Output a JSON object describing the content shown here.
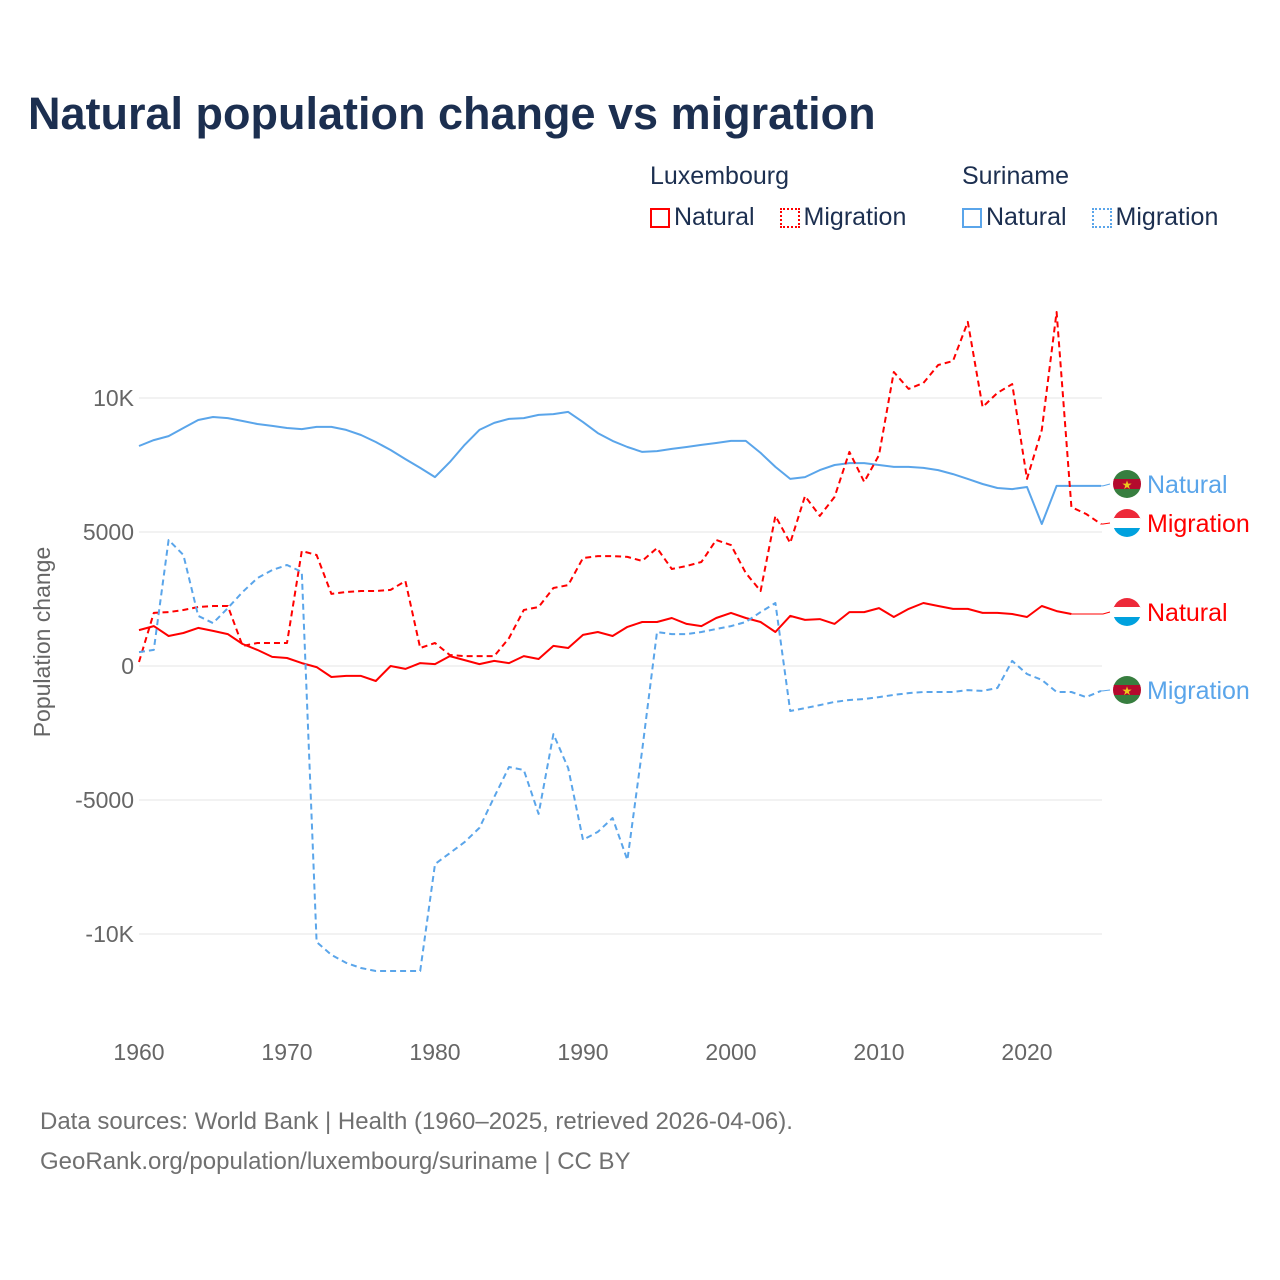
{
  "title": "Natural population change vs migration",
  "legend": {
    "groups": [
      {
        "name": "Luxembourg",
        "items": [
          {
            "label": "Natural",
            "style": "solid"
          },
          {
            "label": "Migration",
            "style": "dotted"
          }
        ],
        "color": "#ff0000"
      },
      {
        "name": "Suriname",
        "items": [
          {
            "label": "Natural",
            "style": "solid"
          },
          {
            "label": "Migration",
            "style": "dotted"
          }
        ],
        "color": "#5aa5ea"
      }
    ]
  },
  "footer": {
    "line1": "Data sources: World Bank | Health (1960–2025, retrieved 2026-04-06).",
    "line2": "GeoRank.org/population/luxembourg/suriname | CC BY"
  },
  "chart_data": {
    "type": "line",
    "title": "Natural population change vs migration",
    "xlabel": "",
    "ylabel": "Population change",
    "xlim": [
      1960,
      2025
    ],
    "ylim": [
      -12000,
      14000
    ],
    "grid": true,
    "x_ticks": [
      {
        "value": 1960,
        "label": "1960"
      },
      {
        "value": 1970,
        "label": "1970"
      },
      {
        "value": 1980,
        "label": "1980"
      },
      {
        "value": 1990,
        "label": "1990"
      },
      {
        "value": 2000,
        "label": "2000"
      },
      {
        "value": 2010,
        "label": "2010"
      },
      {
        "value": 2020,
        "label": "2020"
      }
    ],
    "y_ticks": [
      {
        "value": 10000,
        "label": "10K"
      },
      {
        "value": 5000,
        "label": "5000"
      },
      {
        "value": 0,
        "label": "0"
      },
      {
        "value": -5000,
        "label": "-5000"
      },
      {
        "value": -10000,
        "label": "-10K"
      }
    ],
    "series": [
      {
        "name": "Suriname Natural",
        "end_label": "Natural",
        "country": "Suriname",
        "color": "#5aa5ea",
        "dash": false,
        "start": 1960,
        "values": [
          8210,
          8430,
          8580,
          8880,
          9180,
          9290,
          9250,
          9140,
          9030,
          8960,
          8880,
          8840,
          8920,
          8920,
          8810,
          8620,
          8360,
          8060,
          7720,
          7390,
          7050,
          7610,
          8250,
          8810,
          9070,
          9220,
          9250,
          9370,
          9400,
          9480,
          9100,
          8690,
          8400,
          8170,
          7990,
          8020,
          8100,
          8170,
          8250,
          8320,
          8400,
          8400,
          7950,
          7430,
          6980,
          7050,
          7310,
          7500,
          7570,
          7570,
          7500,
          7430,
          7430,
          7390,
          7310,
          7160,
          6980,
          6790,
          6640,
          6600,
          6680,
          5300,
          6720,
          6720,
          6720,
          6720
        ]
      },
      {
        "name": "Luxembourg Migration",
        "end_label": "Migration",
        "country": "Luxembourg",
        "color": "#ff0000",
        "dash": true,
        "start": 1960,
        "values": [
          150,
          1980,
          2010,
          2090,
          2200,
          2240,
          2240,
          750,
          860,
          860,
          860,
          4290,
          4140,
          2690,
          2760,
          2800,
          2800,
          2840,
          3170,
          670,
          860,
          410,
          370,
          370,
          370,
          1040,
          2090,
          2200,
          2910,
          3020,
          4030,
          4100,
          4100,
          4070,
          3920,
          4400,
          3620,
          3730,
          3880,
          4700,
          4510,
          3470,
          2800,
          5600,
          4590,
          6340,
          5600,
          6310,
          7990,
          6870,
          7870,
          10970,
          10340,
          10560,
          11230,
          11380,
          12840,
          9660,
          10190,
          10520,
          6980,
          8810,
          13210,
          5930,
          5670,
          5300
        ]
      },
      {
        "name": "Luxembourg Natural",
        "end_label": "Natural",
        "country": "Luxembourg",
        "color": "#ff0000",
        "dash": false,
        "start": 1960,
        "values": [
          1340,
          1490,
          1120,
          1230,
          1420,
          1310,
          1190,
          820,
          600,
          340,
          300,
          110,
          -40,
          -410,
          -370,
          -370,
          -560,
          0,
          -110,
          110,
          70,
          370,
          220,
          70,
          190,
          110,
          370,
          260,
          750,
          670,
          1160,
          1270,
          1120,
          1460,
          1640,
          1640,
          1790,
          1570,
          1490,
          1790,
          1980,
          1790,
          1640,
          1270,
          1870,
          1720,
          1750,
          1570,
          2010,
          2010,
          2160,
          1830,
          2130,
          2350,
          2240,
          2130,
          2130,
          1980,
          1980,
          1940,
          1830,
          2240,
          2050,
          1940
        ]
      },
      {
        "name": "Suriname Migration",
        "end_label": "Migration",
        "country": "Suriname",
        "color": "#5aa5ea",
        "dash": true,
        "start": 1960,
        "values": [
          520,
          600,
          4700,
          4140,
          1870,
          1600,
          2160,
          2760,
          3280,
          3580,
          3770,
          3510,
          -10300,
          -10780,
          -11080,
          -11270,
          -11380,
          -11380,
          -11380,
          -11380,
          -7390,
          -6980,
          -6570,
          -6040,
          -4890,
          -3770,
          -3880,
          -5520,
          -2540,
          -3810,
          -6490,
          -6190,
          -5670,
          -7240,
          -3130,
          1270,
          1190,
          1190,
          1270,
          1380,
          1490,
          1640,
          2010,
          2350,
          -1680,
          -1570,
          -1460,
          -1340,
          -1270,
          -1230,
          -1160,
          -1080,
          -1010,
          -970,
          -970,
          -970,
          -900,
          -930,
          -820,
          190,
          -300,
          -520,
          -970,
          -970,
          -1160,
          -930
        ]
      }
    ]
  }
}
